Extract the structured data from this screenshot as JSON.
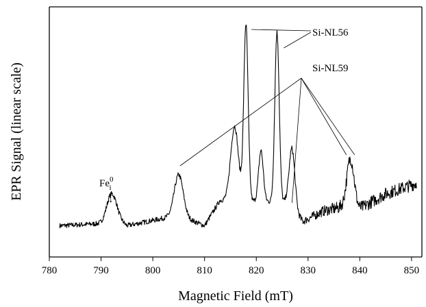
{
  "chart_data": {
    "type": "line",
    "title": "",
    "xlabel": "Magnetic Field (mT)",
    "ylabel": "EPR Signal (linear scale)",
    "xlim": [
      780,
      852
    ],
    "ylim": [
      0,
      1
    ],
    "x_ticks": [
      780,
      790,
      800,
      810,
      820,
      830,
      840,
      850
    ],
    "grid": false,
    "legend": "none",
    "baseline": {
      "x": [
        782,
        790,
        793,
        795,
        803,
        806,
        810,
        813,
        826,
        829,
        833,
        837,
        840,
        845,
        851
      ],
      "y": [
        0.06,
        0.07,
        0.1,
        0.06,
        0.1,
        0.1,
        0.06,
        0.18,
        0.17,
        0.08,
        0.13,
        0.15,
        0.14,
        0.21,
        0.26
      ]
    },
    "peaks": [
      {
        "x": 792.0,
        "height": 0.12,
        "width": 0.9
      },
      {
        "x": 805.0,
        "height": 0.2,
        "width": 0.85
      },
      {
        "x": 815.8,
        "height": 0.35,
        "width": 0.75
      },
      {
        "x": 818.0,
        "height": 0.83,
        "width": 0.42
      },
      {
        "x": 820.9,
        "height": 0.24,
        "width": 0.45
      },
      {
        "x": 824.0,
        "height": 0.8,
        "width": 0.42
      },
      {
        "x": 826.9,
        "height": 0.28,
        "width": 0.55
      },
      {
        "x": 838.2,
        "height": 0.23,
        "width": 0.7
      }
    ],
    "annotations": [
      {
        "text": "Si-NL56",
        "targets": [
          818.0,
          824.0
        ]
      },
      {
        "text": "Si-NL59",
        "targets": [
          805.0,
          826.9,
          838.2
        ]
      },
      {
        "text_main": "Fe",
        "sup": "0",
        "sub": "i",
        "arrow": "↓",
        "target": 792.0
      }
    ]
  }
}
